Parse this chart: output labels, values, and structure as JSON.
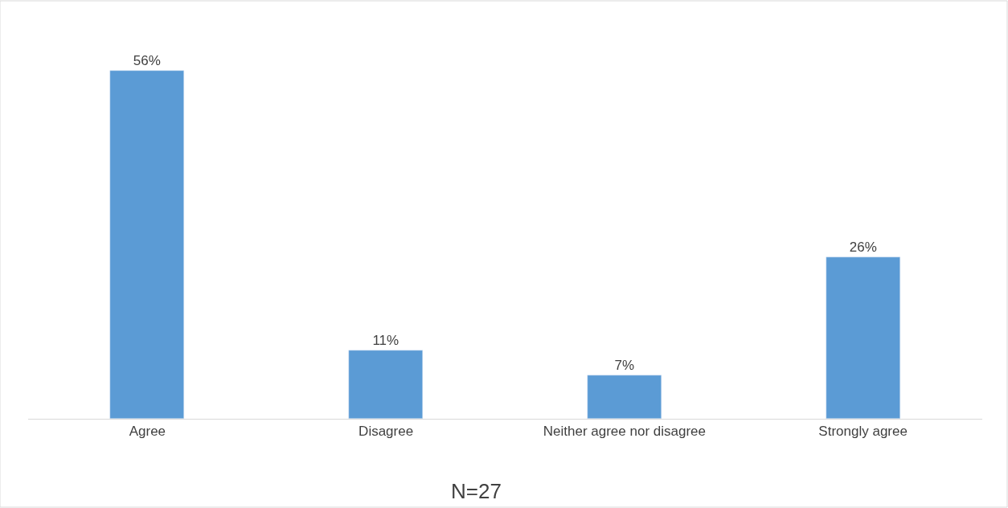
{
  "chart_data": {
    "type": "bar",
    "categories": [
      "Agree",
      "Disagree",
      "Neither agree nor disagree",
      "Strongly agree"
    ],
    "values": [
      56,
      11,
      7,
      26
    ],
    "value_labels": [
      "56%",
      "11%",
      "7%",
      "26%"
    ],
    "color": "#5b9bd5",
    "annotations": [
      "N=27"
    ]
  }
}
